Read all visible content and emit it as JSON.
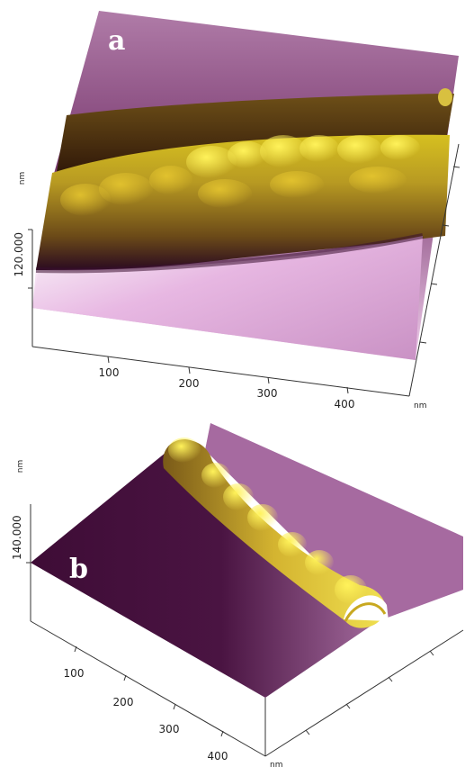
{
  "panels": [
    {
      "label": "a",
      "z_axis": {
        "unit": "nm",
        "tick_label": "120.000"
      },
      "x_axis": {
        "ticks": [
          "100",
          "200",
          "300",
          "400"
        ],
        "unit": "nm"
      }
    },
    {
      "label": "b",
      "z_axis": {
        "unit": "nm",
        "tick_label": "140.000"
      },
      "x_axis": {
        "ticks": [
          "100",
          "200",
          "300",
          "400"
        ],
        "unit": "nm"
      }
    }
  ],
  "colors": {
    "substrate_dark": "#3c0a34",
    "substrate_light": "#f0c8ec",
    "fiber_dark": "#5a4010",
    "fiber_bright": "#f4e020"
  }
}
